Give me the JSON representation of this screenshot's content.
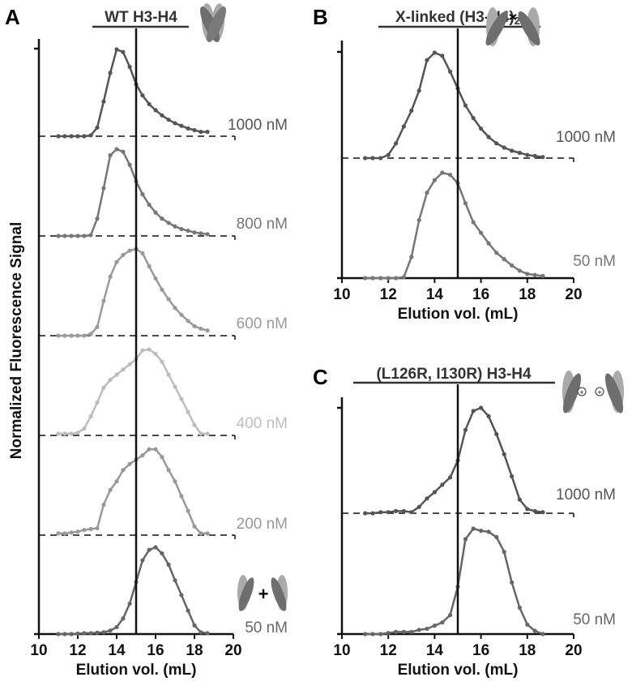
{
  "chart_data": [
    {
      "panel": "A",
      "type": "line",
      "title": "WT H3-H4",
      "xlabel": "Elution vol. (mL)",
      "ylabel": "Normalized Fluorescence Signal",
      "xlim": [
        10,
        20
      ],
      "xticks": [
        "10",
        "12",
        "14",
        "16",
        "18",
        "20"
      ],
      "reference_line_x": 15,
      "x": [
        11,
        11.33,
        11.67,
        12,
        12.33,
        12.67,
        13,
        13.33,
        13.67,
        14,
        14.33,
        14.67,
        15,
        15.33,
        15.67,
        16,
        16.33,
        16.67,
        17,
        17.33,
        17.67,
        18,
        18.33,
        18.67
      ],
      "series": [
        {
          "name": "1000 nM",
          "color": "#555555",
          "values": [
            0,
            0,
            0,
            0,
            0,
            0.01,
            0.1,
            0.4,
            0.73,
            1.0,
            0.97,
            0.8,
            0.6,
            0.47,
            0.37,
            0.3,
            0.24,
            0.19,
            0.15,
            0.12,
            0.09,
            0.07,
            0.05,
            0.05
          ]
        },
        {
          "name": "800 nM",
          "color": "#777777",
          "values": [
            0,
            0,
            0,
            0,
            0,
            0.01,
            0.2,
            0.55,
            0.93,
            1.0,
            0.97,
            0.82,
            0.63,
            0.48,
            0.36,
            0.27,
            0.2,
            0.15,
            0.11,
            0.08,
            0.06,
            0.04,
            0.03,
            0.02
          ]
        },
        {
          "name": "600 nM",
          "color": "#9a9a9a",
          "values": [
            0,
            0,
            0,
            0,
            0,
            0.02,
            0.1,
            0.4,
            0.68,
            0.85,
            0.93,
            0.98,
            1.0,
            0.95,
            0.8,
            0.66,
            0.53,
            0.42,
            0.32,
            0.24,
            0.17,
            0.11,
            0.08,
            0.06
          ]
        },
        {
          "name": "400 nM",
          "color": "#bdbdbd",
          "values": [
            0.02,
            0.02,
            0.02,
            0.03,
            0.08,
            0.22,
            0.38,
            0.55,
            0.64,
            0.7,
            0.76,
            0.82,
            0.88,
            0.98,
            0.99,
            0.94,
            0.85,
            0.7,
            0.56,
            0.42,
            0.27,
            0.12,
            0.02,
            0.02
          ]
        },
        {
          "name": "200 nM",
          "color": "#999999",
          "values": [
            0.02,
            0.02,
            0.03,
            0.04,
            0.06,
            0.07,
            0.08,
            0.35,
            0.52,
            0.62,
            0.75,
            0.82,
            0.87,
            0.92,
            0.99,
            0.99,
            0.9,
            0.75,
            0.62,
            0.45,
            0.28,
            0.1,
            0.02,
            0.02
          ]
        },
        {
          "name": "50 nM",
          "color": "#666666",
          "values": [
            0,
            0,
            0,
            0.005,
            0.01,
            0.01,
            0.015,
            0.02,
            0.04,
            0.08,
            0.18,
            0.35,
            0.6,
            0.85,
            0.97,
            1.0,
            0.93,
            0.8,
            0.62,
            0.45,
            0.27,
            0.1,
            0.02,
            0.01
          ]
        }
      ]
    },
    {
      "panel": "B",
      "type": "line",
      "title": "X-linked (H3-H4)",
      "title_subscript": "2",
      "xlabel": "Elution vol. (mL)",
      "xlim": [
        10,
        20
      ],
      "xticks": [
        "10",
        "12",
        "14",
        "16",
        "18",
        "20"
      ],
      "reference_line_x": 15,
      "x": [
        11,
        11.33,
        11.67,
        12,
        12.33,
        12.67,
        13,
        13.33,
        13.67,
        14,
        14.33,
        14.67,
        15,
        15.33,
        15.67,
        16,
        16.33,
        16.67,
        17,
        17.33,
        17.67,
        18,
        18.33,
        18.67
      ],
      "series": [
        {
          "name": "1000 nM",
          "color": "#555555",
          "values": [
            0,
            0,
            0,
            0.03,
            0.14,
            0.3,
            0.45,
            0.64,
            0.93,
            1.0,
            0.97,
            0.82,
            0.66,
            0.5,
            0.38,
            0.28,
            0.2,
            0.14,
            0.1,
            0.07,
            0.05,
            0.03,
            0.02,
            0.01
          ]
        },
        {
          "name": "50 nM",
          "color": "#777777",
          "values": [
            0,
            0,
            0,
            0,
            0,
            0.01,
            0.2,
            0.55,
            0.81,
            0.93,
            1.0,
            0.98,
            0.9,
            0.71,
            0.53,
            0.43,
            0.33,
            0.24,
            0.18,
            0.12,
            0.07,
            0.04,
            0.03,
            0.02
          ]
        }
      ]
    },
    {
      "panel": "C",
      "type": "line",
      "title": "(L126R, I130R) H3-H4",
      "xlabel": "Elution vol. (mL)",
      "xlim": [
        10,
        20
      ],
      "xticks": [
        "10",
        "12",
        "14",
        "16",
        "18",
        "20"
      ],
      "reference_line_x": 15,
      "x": [
        11,
        11.33,
        11.67,
        12,
        12.33,
        12.67,
        13,
        13.33,
        13.67,
        14,
        14.33,
        14.67,
        15,
        15.33,
        15.67,
        16,
        16.33,
        16.67,
        17,
        17.33,
        17.67,
        18,
        18.33,
        18.67
      ],
      "series": [
        {
          "name": "1000 nM",
          "color": "#555555",
          "values": [
            0,
            0,
            0.01,
            0.01,
            0.02,
            0.02,
            0.01,
            0.06,
            0.14,
            0.2,
            0.27,
            0.34,
            0.5,
            0.79,
            0.97,
            1.0,
            0.92,
            0.75,
            0.56,
            0.35,
            0.13,
            0.04,
            0.02,
            0.01
          ]
        },
        {
          "name": "50 nM",
          "color": "#666666",
          "values": [
            0,
            0,
            0,
            0.01,
            0.02,
            0.02,
            0.02,
            0.04,
            0.05,
            0.08,
            0.11,
            0.18,
            0.45,
            0.9,
            1.0,
            0.98,
            0.97,
            0.92,
            0.78,
            0.49,
            0.25,
            0.09,
            0.03,
            0
          ]
        }
      ]
    }
  ],
  "annotations": {
    "plus_sign": "+"
  }
}
